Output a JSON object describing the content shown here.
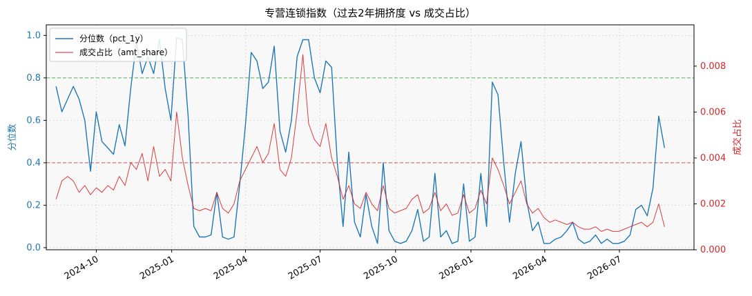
{
  "chart_data": {
    "type": "line",
    "title": "专营连锁指数（过去2年拥挤度 vs 成交占比）",
    "ylabel_left": "分位数",
    "ylabel_right": "成交占比",
    "xlim": [
      "2024-08-01",
      "2026-09-30"
    ],
    "ylim_left": [
      -0.01,
      1.05
    ],
    "ylim_right": [
      0,
      0.0098
    ],
    "left_ticks": [
      "0.0",
      "0.2",
      "0.4",
      "0.6",
      "0.8",
      "1.0"
    ],
    "right_ticks": [
      "0.000",
      "0.002",
      "0.004",
      "0.006",
      "0.008"
    ],
    "x_ticks": [
      "2024-10",
      "2025-01",
      "2025-04",
      "2025-07",
      "2025-10",
      "2026-01",
      "2026-04",
      "2026-07"
    ],
    "reference_lines": [
      {
        "axis": "left",
        "value": 0.8,
        "color": "#2ca02c",
        "style": "dashed"
      },
      {
        "axis": "left",
        "value": 0.4,
        "color": "#d62728",
        "style": "dashed"
      }
    ],
    "grid": true,
    "legend_position": "top-left",
    "colors": {
      "pct": "#1f77b4",
      "amt": "#d62728"
    },
    "series": [
      {
        "name": "分位数（pct_1y）",
        "axis": "left",
        "x": [
          "2024-08-13",
          "2024-08-20",
          "2024-08-27",
          "2024-09-03",
          "2024-09-10",
          "2024-09-17",
          "2024-09-24",
          "2024-10-01",
          "2024-10-08",
          "2024-10-15",
          "2024-10-22",
          "2024-10-29",
          "2024-11-05",
          "2024-11-12",
          "2024-11-19",
          "2024-11-26",
          "2024-12-03",
          "2024-12-10",
          "2024-12-17",
          "2024-12-24",
          "2024-12-31",
          "2025-01-07",
          "2025-01-14",
          "2025-01-21",
          "2025-01-28",
          "2025-02-04",
          "2025-02-11",
          "2025-02-18",
          "2025-02-25",
          "2025-03-04",
          "2025-03-11",
          "2025-03-18",
          "2025-03-25",
          "2025-04-01",
          "2025-04-08",
          "2025-04-15",
          "2025-04-22",
          "2025-04-29",
          "2025-05-06",
          "2025-05-13",
          "2025-05-20",
          "2025-05-27",
          "2025-06-03",
          "2025-06-10",
          "2025-06-17",
          "2025-06-24",
          "2025-07-01",
          "2025-07-08",
          "2025-07-15",
          "2025-07-22",
          "2025-07-29",
          "2025-08-05",
          "2025-08-12",
          "2025-08-19",
          "2025-08-26",
          "2025-09-02",
          "2025-09-09",
          "2025-09-16",
          "2025-09-23",
          "2025-09-30",
          "2025-10-07",
          "2025-10-14",
          "2025-10-21",
          "2025-10-28",
          "2025-11-04",
          "2025-11-11",
          "2025-11-18",
          "2025-11-25",
          "2025-12-02",
          "2025-12-09",
          "2025-12-16",
          "2025-12-23",
          "2025-12-30",
          "2026-01-06",
          "2026-01-13",
          "2026-01-20",
          "2026-01-27",
          "2026-02-03",
          "2026-02-10",
          "2026-02-17",
          "2026-02-24",
          "2026-03-03",
          "2026-03-10",
          "2026-03-17",
          "2026-03-24",
          "2026-03-31",
          "2026-04-07",
          "2026-04-14",
          "2026-04-21",
          "2026-04-28",
          "2026-05-05",
          "2026-05-12",
          "2026-05-19",
          "2026-05-26",
          "2026-06-02",
          "2026-06-09",
          "2026-06-16",
          "2026-06-23",
          "2026-06-30",
          "2026-07-07",
          "2026-07-14",
          "2026-07-21",
          "2026-07-28",
          "2026-08-04",
          "2026-08-11",
          "2026-08-18",
          "2026-08-25"
        ],
        "values": [
          0.76,
          0.64,
          0.7,
          0.76,
          0.7,
          0.6,
          0.36,
          0.64,
          0.5,
          0.47,
          0.44,
          0.58,
          0.48,
          0.75,
          0.97,
          0.82,
          0.9,
          0.82,
          0.98,
          0.75,
          0.6,
          0.99,
          0.98,
          0.62,
          0.1,
          0.05,
          0.05,
          0.06,
          0.26,
          0.05,
          0.04,
          0.05,
          0.3,
          0.58,
          0.92,
          0.88,
          0.75,
          0.78,
          0.95,
          0.55,
          0.45,
          0.6,
          0.9,
          0.98,
          0.98,
          0.8,
          0.73,
          0.88,
          0.85,
          0.4,
          0.1,
          0.45,
          0.12,
          0.05,
          0.25,
          0.1,
          0.02,
          0.4,
          0.08,
          0.03,
          0.02,
          0.03,
          0.08,
          0.18,
          0.03,
          0.05,
          0.35,
          0.05,
          0.08,
          0.02,
          0.03,
          0.3,
          0.03,
          0.05,
          0.35,
          0.1,
          0.78,
          0.72,
          0.4,
          0.12,
          0.35,
          0.5,
          0.22,
          0.08,
          0.12,
          0.02,
          0.02,
          0.04,
          0.05,
          0.08,
          0.12,
          0.04,
          0.02,
          0.03,
          0.06,
          0.02,
          0.04,
          0.02,
          0.02,
          0.03,
          0.06,
          0.18,
          0.2,
          0.15,
          0.28,
          0.62,
          0.47
        ]
      },
      {
        "name": "成交占比（amt_share）",
        "axis": "right",
        "x": [
          "2024-08-13",
          "2024-08-20",
          "2024-08-27",
          "2024-09-03",
          "2024-09-10",
          "2024-09-17",
          "2024-09-24",
          "2024-10-01",
          "2024-10-08",
          "2024-10-15",
          "2024-10-22",
          "2024-10-29",
          "2024-11-05",
          "2024-11-12",
          "2024-11-19",
          "2024-11-26",
          "2024-12-03",
          "2024-12-10",
          "2024-12-17",
          "2024-12-24",
          "2024-12-31",
          "2025-01-07",
          "2025-01-14",
          "2025-01-21",
          "2025-01-28",
          "2025-02-04",
          "2025-02-11",
          "2025-02-18",
          "2025-02-25",
          "2025-03-04",
          "2025-03-11",
          "2025-03-18",
          "2025-03-25",
          "2025-04-01",
          "2025-04-08",
          "2025-04-15",
          "2025-04-22",
          "2025-04-29",
          "2025-05-06",
          "2025-05-13",
          "2025-05-20",
          "2025-05-27",
          "2025-06-03",
          "2025-06-10",
          "2025-06-17",
          "2025-06-24",
          "2025-07-01",
          "2025-07-08",
          "2025-07-15",
          "2025-07-22",
          "2025-07-29",
          "2025-08-05",
          "2025-08-12",
          "2025-08-19",
          "2025-08-26",
          "2025-09-02",
          "2025-09-09",
          "2025-09-16",
          "2025-09-23",
          "2025-09-30",
          "2025-10-07",
          "2025-10-14",
          "2025-10-21",
          "2025-10-28",
          "2025-11-04",
          "2025-11-11",
          "2025-11-18",
          "2025-11-25",
          "2025-12-02",
          "2025-12-09",
          "2025-12-16",
          "2025-12-23",
          "2025-12-30",
          "2026-01-06",
          "2026-01-13",
          "2026-01-20",
          "2026-01-27",
          "2026-02-03",
          "2026-02-10",
          "2026-02-17",
          "2026-02-24",
          "2026-03-03",
          "2026-03-10",
          "2026-03-17",
          "2026-03-24",
          "2026-03-31",
          "2026-04-07",
          "2026-04-14",
          "2026-04-21",
          "2026-04-28",
          "2026-05-05",
          "2026-05-12",
          "2026-05-19",
          "2026-05-26",
          "2026-06-02",
          "2026-06-09",
          "2026-06-16",
          "2026-06-23",
          "2026-06-30",
          "2026-07-07",
          "2026-07-14",
          "2026-07-21",
          "2026-07-28",
          "2026-08-04",
          "2026-08-11",
          "2026-08-18",
          "2026-08-25"
        ],
        "values": [
          0.0022,
          0.003,
          0.0032,
          0.003,
          0.0025,
          0.0028,
          0.0024,
          0.0027,
          0.0025,
          0.0028,
          0.0026,
          0.0032,
          0.0028,
          0.0038,
          0.0035,
          0.0042,
          0.003,
          0.0045,
          0.0032,
          0.0035,
          0.003,
          0.006,
          0.004,
          0.0028,
          0.0018,
          0.0017,
          0.0018,
          0.0017,
          0.0025,
          0.0018,
          0.0016,
          0.002,
          0.003,
          0.0035,
          0.004,
          0.0045,
          0.0038,
          0.0042,
          0.0055,
          0.0035,
          0.0032,
          0.004,
          0.006,
          0.0085,
          0.0055,
          0.0048,
          0.0045,
          0.0055,
          0.004,
          0.0032,
          0.0022,
          0.0028,
          0.002,
          0.0018,
          0.0025,
          0.002,
          0.0017,
          0.0028,
          0.0018,
          0.0016,
          0.0017,
          0.0018,
          0.0022,
          0.0024,
          0.0016,
          0.0018,
          0.0025,
          0.0017,
          0.002,
          0.0015,
          0.0016,
          0.0024,
          0.0016,
          0.0018,
          0.0026,
          0.002,
          0.004,
          0.0035,
          0.0028,
          0.002,
          0.0025,
          0.003,
          0.002,
          0.0016,
          0.0018,
          0.0014,
          0.0012,
          0.0013,
          0.0012,
          0.0011,
          0.0012,
          0.001,
          0.0009,
          0.0009,
          0.001,
          0.0008,
          0.0009,
          0.0008,
          0.0008,
          0.0009,
          0.001,
          0.0011,
          0.0012,
          0.001,
          0.0012,
          0.002,
          0.001
        ]
      }
    ]
  }
}
